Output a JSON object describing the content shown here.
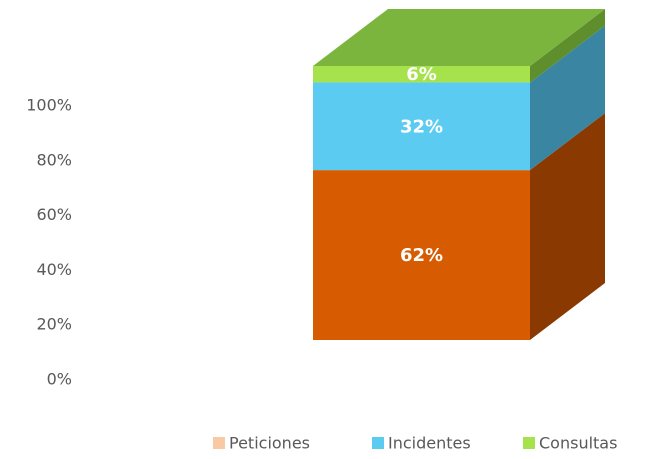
{
  "chart_data": {
    "type": "bar3d_stacked",
    "categories": [
      null
    ],
    "series": [
      {
        "name": "Peticiones",
        "color": "#d75b00",
        "side_color": "#8a3a00",
        "legend_color": "#f8c9a2",
        "values": [
          62
        ],
        "value_labels": [
          "62%"
        ]
      },
      {
        "name": "Incidentes",
        "color": "#5ccbf1",
        "side_color": "#3a86a2",
        "legend_color": "#5ccbf1",
        "values": [
          32
        ],
        "value_labels": [
          "32%"
        ]
      },
      {
        "name": "Consultas",
        "color": "#a6e24c",
        "side_color": "#5f8f2c",
        "top_color": "#7cb53d",
        "legend_color": "#a6e24c",
        "values": [
          6
        ],
        "value_labels": [
          "6%"
        ]
      }
    ],
    "ylim": [
      0,
      100
    ],
    "yticks": [
      {
        "value": 0,
        "label": "0%"
      },
      {
        "value": 20,
        "label": "20%"
      },
      {
        "value": 40,
        "label": "40%"
      },
      {
        "value": 60,
        "label": "60%"
      },
      {
        "value": 80,
        "label": "80%"
      },
      {
        "value": 100,
        "label": "100%"
      }
    ],
    "legend": "bottom-right"
  }
}
